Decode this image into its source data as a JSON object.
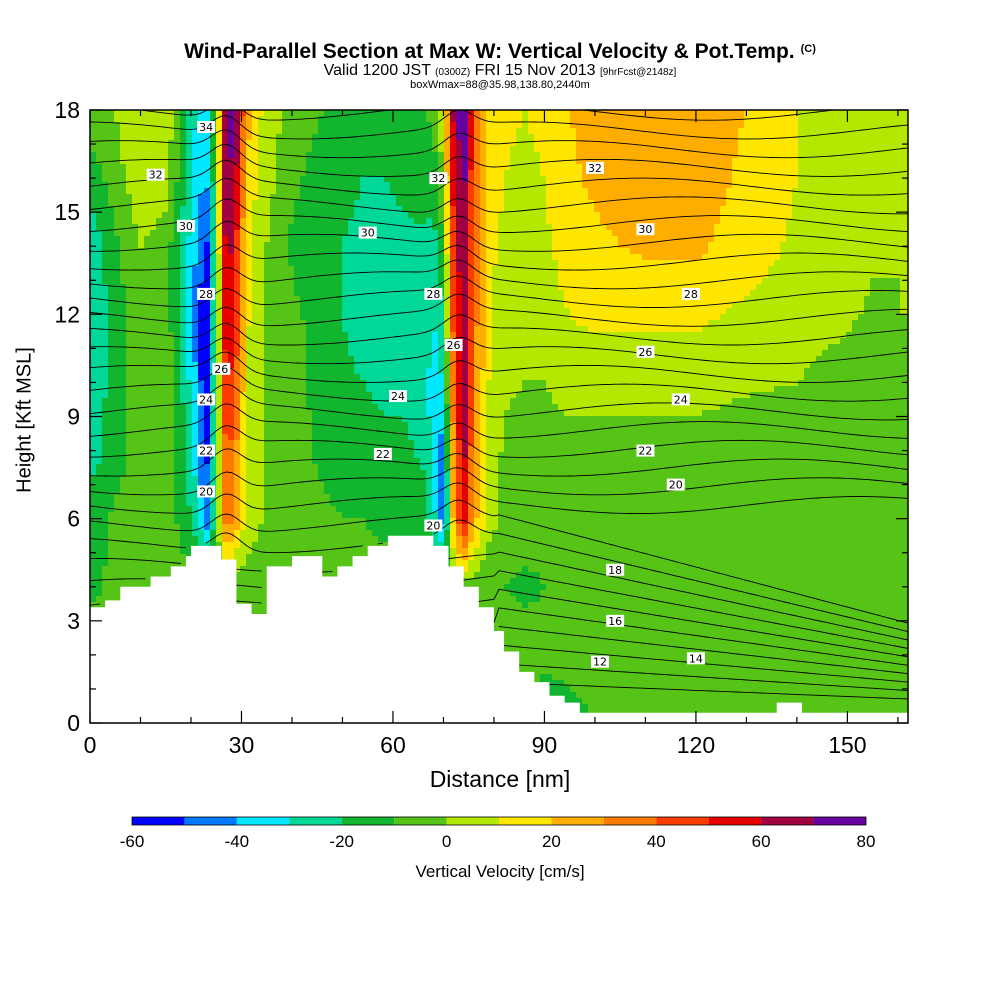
{
  "title": {
    "line1": "Wind-Parallel Section at Max W: Vertical Velocity & Pot.Temp.",
    "line1_tag": "(C)",
    "line2_a": "Valid 1200 JST",
    "line2_b": "(0300Z)",
    "line2_c": "FRI 15 Nov 2013",
    "line2_d": "[9hrFcst@2148z]",
    "line3": "boxWmax=88@35.98,138.80,2440m"
  },
  "chart_data": {
    "type": "heatmap",
    "title": "Wind-Parallel Section at Max W: Vertical Velocity & Pot.Temp.",
    "xlabel": "Distance [nm]",
    "ylabel": "Height [Kft MSL]",
    "xlim": [
      0,
      162
    ],
    "ylim": [
      0,
      18
    ],
    "x_ticks": [
      0,
      30,
      60,
      90,
      120,
      150
    ],
    "y_ticks": [
      0,
      3,
      6,
      9,
      12,
      15,
      18
    ],
    "grid": false,
    "colorbar": {
      "label": "Vertical Velocity [cm/s]",
      "ticks": [
        -60,
        -40,
        -20,
        0,
        20,
        40,
        60,
        80
      ],
      "bounds": [
        -60,
        -50,
        -40,
        -30,
        -20,
        -10,
        0,
        10,
        20,
        30,
        40,
        50,
        60,
        70,
        80
      ],
      "colors": [
        "#0000ff",
        "#0078ff",
        "#00e8ff",
        "#00d898",
        "#12b52e",
        "#55c416",
        "#b4e800",
        "#ffe600",
        "#ffae00",
        "#ff7a00",
        "#ff3c00",
        "#e60000",
        "#a00040",
        "#6800a0"
      ]
    },
    "terrain": [
      [
        0,
        3.4
      ],
      [
        3,
        3.4
      ],
      [
        3,
        3.6
      ],
      [
        6,
        3.6
      ],
      [
        6,
        4.0
      ],
      [
        12,
        4.0
      ],
      [
        12,
        4.3
      ],
      [
        16,
        4.3
      ],
      [
        16,
        4.6
      ],
      [
        19,
        4.6
      ],
      [
        19,
        4.9
      ],
      [
        20,
        4.9
      ],
      [
        20,
        5.2
      ],
      [
        26,
        5.2
      ],
      [
        26,
        4.8
      ],
      [
        29,
        4.8
      ],
      [
        29,
        3.5
      ],
      [
        32,
        3.5
      ],
      [
        32,
        3.2
      ],
      [
        35,
        3.2
      ],
      [
        35,
        4.6
      ],
      [
        40,
        4.6
      ],
      [
        40,
        4.9
      ],
      [
        46,
        4.9
      ],
      [
        46,
        4.3
      ],
      [
        49,
        4.3
      ],
      [
        49,
        4.6
      ],
      [
        52,
        4.6
      ],
      [
        52,
        4.9
      ],
      [
        55,
        4.9
      ],
      [
        55,
        5.2
      ],
      [
        59,
        5.2
      ],
      [
        59,
        5.5
      ],
      [
        68,
        5.5
      ],
      [
        68,
        5.2
      ],
      [
        71,
        5.2
      ],
      [
        71,
        4.6
      ],
      [
        74,
        4.6
      ],
      [
        74,
        4.0
      ],
      [
        77,
        4.0
      ],
      [
        77,
        3.4
      ],
      [
        80,
        3.4
      ],
      [
        80,
        2.7
      ],
      [
        82,
        2.7
      ],
      [
        82,
        2.1
      ],
      [
        85,
        2.1
      ],
      [
        85,
        1.5
      ],
      [
        88,
        1.5
      ],
      [
        88,
        1.2
      ],
      [
        91,
        1.2
      ],
      [
        91,
        0.8
      ],
      [
        94,
        0.8
      ],
      [
        94,
        0.6
      ],
      [
        97,
        0.6
      ],
      [
        97,
        0.3
      ],
      [
        136,
        0.3
      ],
      [
        136,
        0.6
      ],
      [
        141,
        0.6
      ],
      [
        141,
        0.3
      ],
      [
        162,
        0.3
      ]
    ],
    "w_field": {
      "x": [
        0,
        5,
        10,
        15,
        18,
        21,
        23,
        25,
        27,
        29,
        31,
        33,
        35,
        38,
        42,
        46,
        50,
        54,
        58,
        62,
        66,
        68,
        70,
        72,
        74,
        76,
        79,
        82,
        86,
        90,
        95,
        100,
        110,
        120,
        130,
        140,
        150,
        155,
        160,
        162
      ],
      "y": [
        0,
        2,
        4,
        6,
        8,
        10,
        12,
        14,
        16,
        18
      ],
      "values": [
        [
          -10,
          -10,
          -10,
          -10,
          -10,
          -10,
          -10,
          -10,
          -10,
          -10,
          -10,
          -10,
          -10,
          -10,
          -10,
          -10,
          -10,
          -10,
          -10,
          -10,
          -10,
          -10,
          -10,
          -10,
          -10,
          -10,
          -10,
          -10,
          -10,
          -15,
          -12,
          -10,
          -10,
          -10,
          -10,
          -10,
          -10,
          -10,
          -10,
          -10
        ],
        [
          -5,
          -5,
          -5,
          -5,
          -5,
          -5,
          -5,
          -5,
          -5,
          -5,
          -5,
          -5,
          -5,
          -5,
          -5,
          -5,
          -5,
          -5,
          -5,
          -5,
          -5,
          -5,
          -5,
          -5,
          -5,
          -5,
          -5,
          -5,
          -5,
          -8,
          -8,
          -8,
          -8,
          -8,
          -8,
          -8,
          -8,
          -8,
          -8,
          -8
        ],
        [
          -12,
          -8,
          -6,
          -6,
          -6,
          -6,
          -6,
          -6,
          -6,
          -6,
          -6,
          -6,
          -6,
          -6,
          -6,
          -6,
          -6,
          -6,
          -6,
          -6,
          -6,
          -6,
          -6,
          -6,
          -6,
          -6,
          -8,
          -10,
          -12,
          -10,
          -10,
          -10,
          -10,
          -10,
          -10,
          -10,
          -10,
          -10,
          -10,
          -10
        ],
        [
          -15,
          -8,
          -2,
          -5,
          -12,
          -25,
          -48,
          -10,
          40,
          25,
          8,
          2,
          -2,
          -5,
          -5,
          -8,
          -10,
          -10,
          -12,
          -12,
          -15,
          -25,
          -50,
          25,
          60,
          25,
          5,
          -2,
          -5,
          -8,
          -10,
          -10,
          -10,
          -10,
          -10,
          -10,
          -10,
          -10,
          -10,
          -10
        ],
        [
          -25,
          -15,
          -5,
          -5,
          -15,
          -35,
          -55,
          -10,
          45,
          30,
          10,
          5,
          -2,
          -5,
          -8,
          -12,
          -15,
          -15,
          -18,
          -18,
          -22,
          -35,
          -45,
          30,
          65,
          30,
          8,
          -2,
          -5,
          -5,
          -5,
          -5,
          -5,
          -5,
          -8,
          -8,
          -8,
          -8,
          -5,
          -10
        ],
        [
          -28,
          -15,
          -5,
          -5,
          -18,
          -40,
          -60,
          -12,
          55,
          40,
          10,
          5,
          -2,
          -5,
          -8,
          -15,
          -18,
          -20,
          -22,
          -22,
          -25,
          -35,
          -30,
          40,
          70,
          35,
          10,
          2,
          0,
          0,
          5,
          5,
          5,
          5,
          2,
          0,
          -5,
          -8,
          -5,
          -5
        ],
        [
          -30,
          -15,
          -3,
          -5,
          -20,
          -45,
          -60,
          -15,
          65,
          45,
          12,
          5,
          0,
          -5,
          -10,
          -15,
          -20,
          -25,
          -25,
          -25,
          -25,
          -30,
          -20,
          45,
          70,
          35,
          12,
          5,
          5,
          5,
          10,
          12,
          12,
          12,
          8,
          5,
          2,
          -2,
          0,
          0
        ],
        [
          -28,
          -12,
          0,
          -5,
          -20,
          -40,
          -55,
          -12,
          70,
          50,
          15,
          5,
          0,
          -8,
          -15,
          -15,
          -20,
          -25,
          -25,
          -22,
          -22,
          -25,
          -10,
          50,
          70,
          35,
          12,
          8,
          5,
          8,
          15,
          18,
          22,
          22,
          15,
          8,
          5,
          2,
          0,
          0
        ],
        [
          -15,
          -5,
          8,
          5,
          -15,
          -35,
          -40,
          -10,
          75,
          60,
          20,
          10,
          5,
          -5,
          -10,
          -15,
          -15,
          -20,
          -20,
          -18,
          -15,
          -15,
          0,
          55,
          75,
          40,
          15,
          10,
          8,
          10,
          18,
          22,
          25,
          25,
          18,
          10,
          5,
          2,
          0,
          0
        ],
        [
          -5,
          0,
          10,
          8,
          -10,
          -30,
          -35,
          -5,
          80,
          70,
          25,
          12,
          8,
          0,
          -5,
          -10,
          -10,
          -15,
          -15,
          -12,
          -10,
          -8,
          10,
          65,
          80,
          45,
          18,
          12,
          10,
          12,
          20,
          25,
          25,
          25,
          20,
          10,
          5,
          2,
          0,
          0
        ]
      ]
    },
    "theta_labels": [
      {
        "x": 23,
        "y": 17.5,
        "text": "34"
      },
      {
        "x": 13,
        "y": 16.1,
        "text": "32"
      },
      {
        "x": 69,
        "y": 16.0,
        "text": "32"
      },
      {
        "x": 100,
        "y": 16.3,
        "text": "32"
      },
      {
        "x": 19,
        "y": 14.6,
        "text": "30"
      },
      {
        "x": 55,
        "y": 14.4,
        "text": "30"
      },
      {
        "x": 110,
        "y": 14.5,
        "text": "30"
      },
      {
        "x": 23,
        "y": 12.6,
        "text": "28"
      },
      {
        "x": 68,
        "y": 12.6,
        "text": "28"
      },
      {
        "x": 119,
        "y": 12.6,
        "text": "28"
      },
      {
        "x": 72,
        "y": 11.1,
        "text": "26"
      },
      {
        "x": 26,
        "y": 10.4,
        "text": "26"
      },
      {
        "x": 110,
        "y": 10.9,
        "text": "26"
      },
      {
        "x": 23,
        "y": 9.5,
        "text": "24"
      },
      {
        "x": 61,
        "y": 9.6,
        "text": "24"
      },
      {
        "x": 117,
        "y": 9.5,
        "text": "24"
      },
      {
        "x": 23,
        "y": 8.0,
        "text": "22"
      },
      {
        "x": 58,
        "y": 7.9,
        "text": "22"
      },
      {
        "x": 110,
        "y": 8.0,
        "text": "22"
      },
      {
        "x": 23,
        "y": 6.8,
        "text": "20"
      },
      {
        "x": 68,
        "y": 5.8,
        "text": "20"
      },
      {
        "x": 116,
        "y": 7.0,
        "text": "20"
      },
      {
        "x": 104,
        "y": 4.5,
        "text": "18"
      },
      {
        "x": 104,
        "y": 3.0,
        "text": "16"
      },
      {
        "x": 101,
        "y": 1.8,
        "text": "12"
      },
      {
        "x": 120,
        "y": 1.9,
        "text": "14"
      }
    ]
  },
  "colors": {
    "background": "#ffffff",
    "axis": "#000000",
    "contour": "#000000",
    "terrain": "#ffffff"
  }
}
